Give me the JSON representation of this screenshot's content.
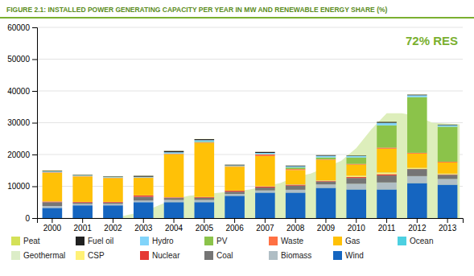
{
  "chart_data": {
    "type": "bar",
    "title": "FIGURE 2.1: INSTALLED POWER GENERATING CAPACITY PER YEAR IN MW AND RENEWABLE ENERGY SHARE (%)",
    "categories": [
      2000,
      2001,
      2002,
      2003,
      2004,
      2005,
      2006,
      2007,
      2008,
      2009,
      2010,
      2011,
      2012,
      2013
    ],
    "stacked": true,
    "grid": true,
    "legend": "bottom",
    "ylim": [
      0,
      60000
    ],
    "yticks": [
      0,
      10000,
      20000,
      30000,
      40000,
      50000,
      60000
    ],
    "annotations": [
      "72% RES"
    ],
    "series": [
      {
        "type": "area",
        "color": "#ddeebb",
        "x": [
          -0.4,
          0.0,
          0.5,
          1.0,
          1.5,
          2.0,
          2.5,
          3.0,
          3.5,
          4.0,
          4.5,
          5.0,
          5.5,
          6.0,
          6.5,
          7.0,
          7.5,
          8.0,
          8.5,
          9.0,
          9.5,
          10.0,
          10.5,
          11.0,
          11.5,
          12.0,
          12.5,
          13.4
        ],
        "values": [
          0,
          0,
          0,
          0,
          0,
          0,
          1000,
          2000,
          4000,
          6000,
          7000,
          7500,
          8000,
          8500,
          9000,
          10000,
          11000,
          13000,
          14000,
          16000,
          18000,
          22000,
          28000,
          33000,
          33000,
          32000,
          30000,
          29500
        ]
      },
      {
        "name": "Wind",
        "color": "#1565c0",
        "values": [
          3200,
          4000,
          4000,
          5000,
          5000,
          5000,
          7000,
          8000,
          8000,
          9500,
          9000,
          9000,
          11000,
          10500
        ]
      },
      {
        "name": "Biomass",
        "color": "#b0bec5",
        "values": [
          600,
          450,
          450,
          500,
          700,
          700,
          600,
          700,
          900,
          1100,
          1800,
          2200,
          2200,
          1800
        ]
      },
      {
        "name": "Coal",
        "color": "#757575",
        "values": [
          1200,
          400,
          400,
          1200,
          600,
          700,
          700,
          900,
          1300,
          900,
          1800,
          2200,
          2200,
          1300
        ]
      },
      {
        "name": "Nuclear",
        "color": "#e53935",
        "values": [
          200,
          200,
          200,
          400,
          200,
          200,
          300,
          300,
          300,
          200,
          300,
          400,
          80,
          150
        ]
      },
      {
        "name": "CSP",
        "color": "#fff176",
        "values": [
          0,
          0,
          0,
          0,
          0,
          0,
          0,
          50,
          50,
          80,
          300,
          350,
          200,
          150
        ]
      },
      {
        "name": "Geothermal",
        "color": "#dcedc8",
        "values": [
          30,
          30,
          30,
          30,
          50,
          50,
          30,
          50,
          50,
          50,
          100,
          150,
          100,
          80
        ]
      },
      {
        "name": "Ocean",
        "color": "#4dd0e1",
        "values": [
          5,
          5,
          5,
          5,
          10,
          10,
          5,
          10,
          10,
          10,
          10,
          20,
          10,
          10
        ]
      },
      {
        "name": "Gas",
        "color": "#ffc107",
        "values": [
          9000,
          8000,
          7500,
          5500,
          13500,
          17000,
          7500,
          9500,
          4500,
          6500,
          3500,
          7500,
          4500,
          3500
        ]
      },
      {
        "name": "Waste",
        "color": "#ff7043",
        "values": [
          150,
          100,
          100,
          100,
          150,
          150,
          150,
          500,
          300,
          150,
          250,
          350,
          250,
          250
        ]
      },
      {
        "name": "PV",
        "color": "#8bc34a",
        "values": [
          100,
          100,
          100,
          50,
          100,
          200,
          100,
          100,
          500,
          600,
          2000,
          7000,
          17500,
          11000
        ]
      },
      {
        "name": "Hydro",
        "color": "#81d4fa",
        "values": [
          200,
          200,
          200,
          200,
          400,
          500,
          200,
          400,
          400,
          500,
          500,
          800,
          600,
          500
        ]
      },
      {
        "name": "Fuel oil",
        "color": "#212121",
        "values": [
          200,
          150,
          150,
          300,
          400,
          300,
          200,
          300,
          200,
          200,
          150,
          300,
          200,
          150
        ]
      },
      {
        "name": "Peat",
        "color": "#d4e157",
        "values": [
          100,
          50,
          50,
          50,
          50,
          50,
          20,
          20,
          20,
          20,
          50,
          50,
          50,
          20
        ]
      }
    ]
  }
}
